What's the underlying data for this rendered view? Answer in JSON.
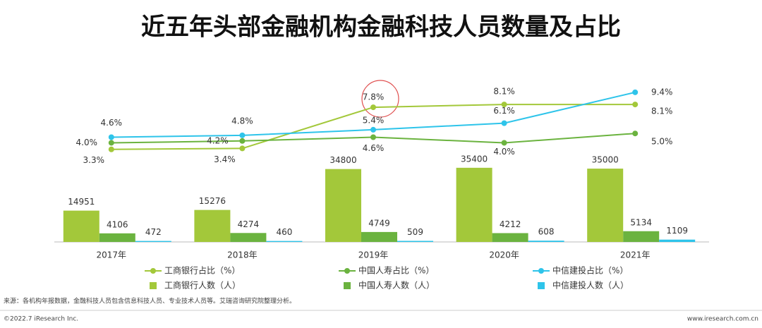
{
  "chart_data": {
    "type": "bar",
    "title": "近五年头部金融机构金融科技人员数量及占比",
    "categories": [
      "2017年",
      "2018年",
      "2019年",
      "2020年",
      "2021年"
    ],
    "ylim": [
      0,
      100000
    ],
    "y2lim": [
      -6.6,
      15.8
    ],
    "series": [
      {
        "name": "工商银行人数（人）",
        "type": "bar",
        "color": "#a3c83a",
        "values": [
          14951,
          15276,
          34800,
          35400,
          35000
        ]
      },
      {
        "name": "中国人寿人数（人）",
        "type": "bar",
        "color": "#6bb33f",
        "values": [
          4106,
          4274,
          4749,
          4212,
          5134
        ]
      },
      {
        "name": "中信建投人数（人）",
        "type": "bar",
        "color": "#2ec4ea",
        "values": [
          472,
          460,
          509,
          608,
          1109
        ]
      },
      {
        "name": "工商银行占比（%）",
        "type": "line",
        "axis": "y2",
        "color": "#a3c83a",
        "values": [
          3.3,
          3.4,
          7.8,
          8.1,
          8.1
        ],
        "value_labels": [
          "3.3%",
          "3.4%",
          "7.8%",
          "8.1%",
          "8.1%"
        ]
      },
      {
        "name": "中国人寿占比（%）",
        "type": "line",
        "axis": "y2",
        "color": "#6bb33f",
        "values": [
          4.0,
          4.2,
          4.6,
          4.0,
          5.0
        ],
        "value_labels": [
          "4.0%",
          "4.2%",
          "4.6%",
          "4.0%",
          "5.0%"
        ]
      },
      {
        "name": "中信建投占比（%）",
        "type": "line",
        "axis": "y2",
        "color": "#2ec4ea",
        "values": [
          4.6,
          4.8,
          5.4,
          6.1,
          9.4
        ],
        "value_labels": [
          "4.6%",
          "4.8%",
          "5.4%",
          "6.1%",
          "9.4%"
        ]
      }
    ]
  },
  "footer": {
    "source": "来源：各机构年报数据，金融科技人员包含信息科技人员、专业技术人员等。艾瑞咨询研究院整理分析。",
    "copyright": "©2022.7 iResearch Inc.",
    "website": "www.iresearch.com.cn"
  }
}
